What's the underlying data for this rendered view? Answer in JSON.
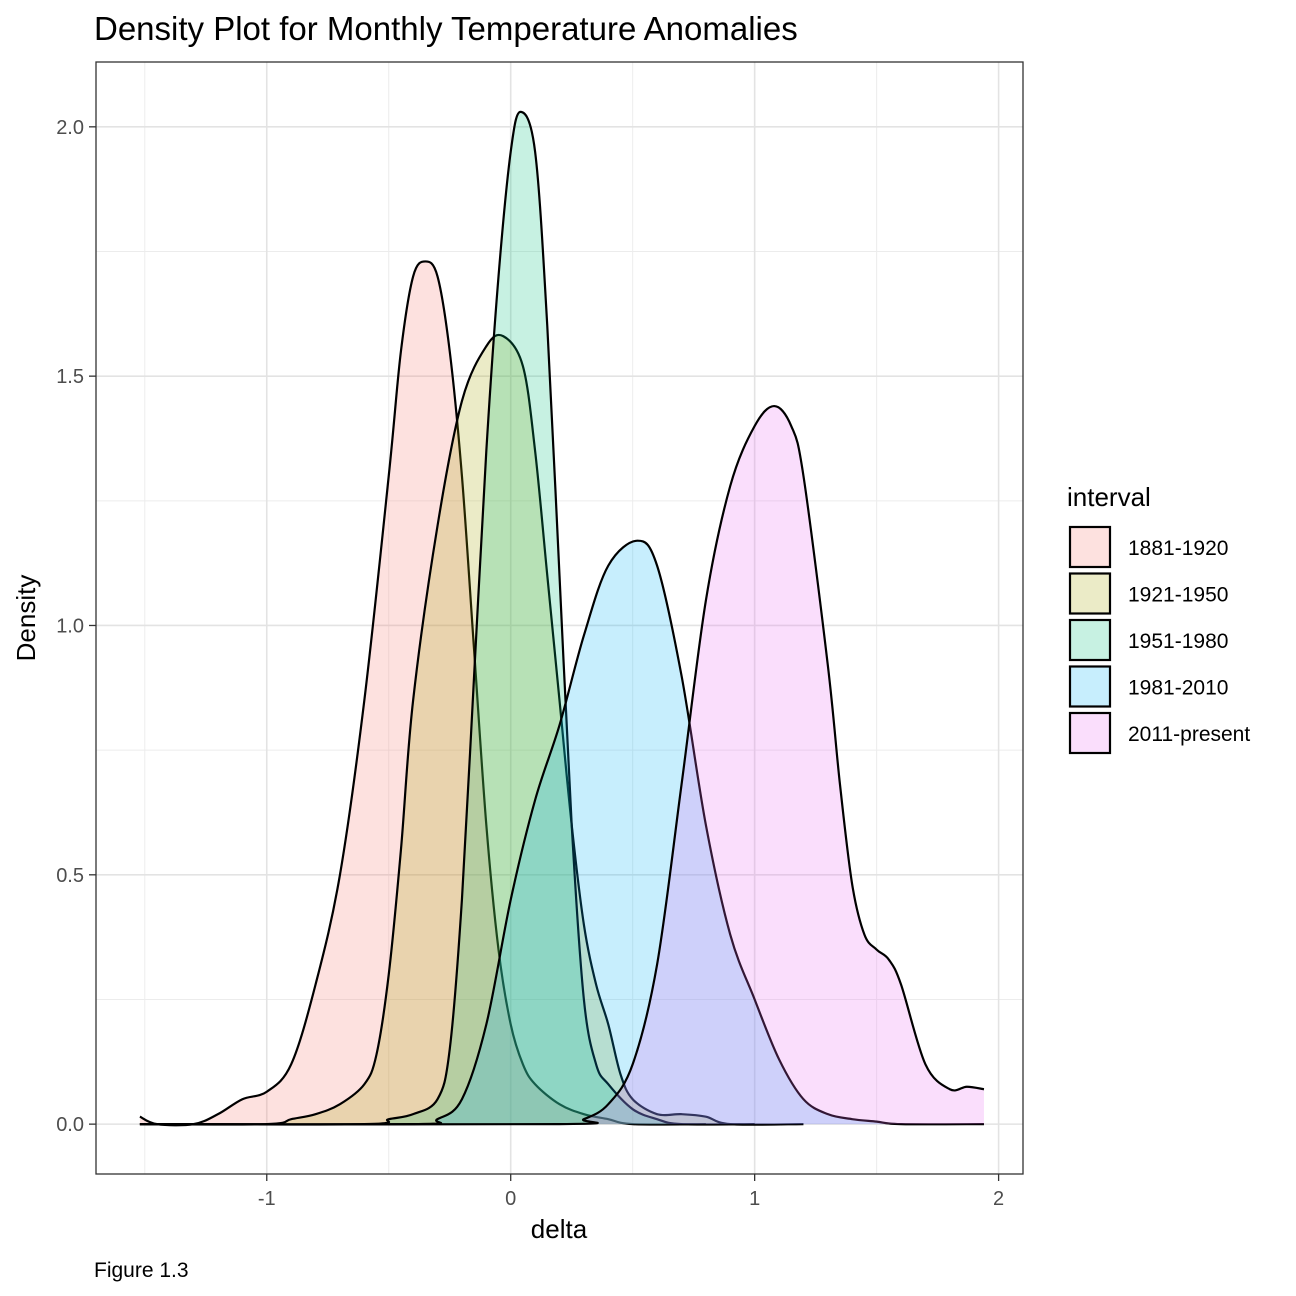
{
  "chart_data": {
    "type": "area",
    "title": "Density Plot for Monthly Temperature Anomalies",
    "xlabel": "delta",
    "ylabel": "Density",
    "caption": "Figure 1.3",
    "xlim": [
      -1.7,
      2.1
    ],
    "ylim": [
      -0.1,
      2.13
    ],
    "x_ticks": [
      -1,
      0,
      1,
      2
    ],
    "x_tick_labels": [
      "-1",
      "0",
      "1",
      "2"
    ],
    "y_ticks": [
      0.0,
      0.5,
      1.0,
      1.5,
      2.0
    ],
    "y_tick_labels": [
      "0.0",
      "0.5",
      "1.0",
      "1.5",
      "2.0"
    ],
    "grid": true,
    "legend": {
      "title": "interval",
      "position": "right"
    },
    "series": [
      {
        "name": "1881-1920",
        "color": "#F8766D",
        "points": [
          [
            -1.52,
            0.015
          ],
          [
            -1.45,
            0.0
          ],
          [
            -1.3,
            0.0
          ],
          [
            -1.2,
            0.02
          ],
          [
            -1.1,
            0.05
          ],
          [
            -1.0,
            0.065
          ],
          [
            -0.9,
            0.12
          ],
          [
            -0.8,
            0.28
          ],
          [
            -0.7,
            0.5
          ],
          [
            -0.6,
            0.85
          ],
          [
            -0.5,
            1.3
          ],
          [
            -0.45,
            1.55
          ],
          [
            -0.4,
            1.7
          ],
          [
            -0.35,
            1.73
          ],
          [
            -0.3,
            1.7
          ],
          [
            -0.25,
            1.55
          ],
          [
            -0.2,
            1.3
          ],
          [
            -0.15,
            0.95
          ],
          [
            -0.1,
            0.6
          ],
          [
            -0.05,
            0.35
          ],
          [
            0.0,
            0.2
          ],
          [
            0.05,
            0.12
          ],
          [
            0.1,
            0.08
          ],
          [
            0.2,
            0.04
          ],
          [
            0.3,
            0.02
          ],
          [
            0.4,
            0.01
          ],
          [
            0.5,
            0.0
          ],
          [
            0.8,
            0.0
          ]
        ]
      },
      {
        "name": "1921-1950",
        "color": "#A3A500",
        "points": [
          [
            -1.52,
            0.0
          ],
          [
            -1.0,
            0.0
          ],
          [
            -0.9,
            0.01
          ],
          [
            -0.8,
            0.02
          ],
          [
            -0.7,
            0.04
          ],
          [
            -0.6,
            0.08
          ],
          [
            -0.55,
            0.14
          ],
          [
            -0.5,
            0.3
          ],
          [
            -0.45,
            0.55
          ],
          [
            -0.4,
            0.85
          ],
          [
            -0.3,
            1.2
          ],
          [
            -0.2,
            1.45
          ],
          [
            -0.1,
            1.56
          ],
          [
            -0.03,
            1.58
          ],
          [
            0.05,
            1.52
          ],
          [
            0.1,
            1.35
          ],
          [
            0.15,
            1.1
          ],
          [
            0.2,
            0.85
          ],
          [
            0.25,
            0.6
          ],
          [
            0.3,
            0.4
          ],
          [
            0.35,
            0.28
          ],
          [
            0.4,
            0.2
          ],
          [
            0.45,
            0.1
          ],
          [
            0.5,
            0.05
          ],
          [
            0.6,
            0.02
          ],
          [
            0.7,
            0.02
          ],
          [
            0.8,
            0.015
          ],
          [
            0.9,
            0.0
          ],
          [
            1.2,
            0.0
          ]
        ]
      },
      {
        "name": "1951-1980",
        "color": "#00BF7D",
        "points": [
          [
            -1.52,
            0.0
          ],
          [
            -0.6,
            0.0
          ],
          [
            -0.5,
            0.01
          ],
          [
            -0.4,
            0.02
          ],
          [
            -0.3,
            0.05
          ],
          [
            -0.25,
            0.15
          ],
          [
            -0.2,
            0.45
          ],
          [
            -0.15,
            0.9
          ],
          [
            -0.1,
            1.35
          ],
          [
            -0.05,
            1.7
          ],
          [
            0.0,
            1.95
          ],
          [
            0.04,
            2.03
          ],
          [
            0.1,
            1.95
          ],
          [
            0.15,
            1.6
          ],
          [
            0.2,
            1.1
          ],
          [
            0.25,
            0.6
          ],
          [
            0.3,
            0.25
          ],
          [
            0.35,
            0.12
          ],
          [
            0.4,
            0.08
          ],
          [
            0.5,
            0.03
          ],
          [
            0.6,
            0.01
          ],
          [
            0.7,
            0.0
          ],
          [
            1.0,
            0.0
          ]
        ]
      },
      {
        "name": "1981-2010",
        "color": "#00B0F6",
        "points": [
          [
            -1.52,
            0.0
          ],
          [
            -0.4,
            0.0
          ],
          [
            -0.3,
            0.01
          ],
          [
            -0.2,
            0.05
          ],
          [
            -0.1,
            0.2
          ],
          [
            0.0,
            0.45
          ],
          [
            0.1,
            0.65
          ],
          [
            0.2,
            0.8
          ],
          [
            0.3,
            0.98
          ],
          [
            0.4,
            1.12
          ],
          [
            0.52,
            1.17
          ],
          [
            0.6,
            1.12
          ],
          [
            0.7,
            0.9
          ],
          [
            0.8,
            0.6
          ],
          [
            0.9,
            0.38
          ],
          [
            1.0,
            0.25
          ],
          [
            1.1,
            0.13
          ],
          [
            1.2,
            0.05
          ],
          [
            1.3,
            0.02
          ],
          [
            1.4,
            0.01
          ],
          [
            1.5,
            0.005
          ],
          [
            1.6,
            0.0
          ],
          [
            1.94,
            0.0
          ]
        ]
      },
      {
        "name": "2011-present",
        "color": "#E76BF3",
        "points": [
          [
            -1.52,
            0.0
          ],
          [
            0.2,
            0.0
          ],
          [
            0.3,
            0.01
          ],
          [
            0.4,
            0.04
          ],
          [
            0.5,
            0.12
          ],
          [
            0.6,
            0.32
          ],
          [
            0.7,
            0.68
          ],
          [
            0.8,
            1.05
          ],
          [
            0.9,
            1.28
          ],
          [
            1.0,
            1.4
          ],
          [
            1.08,
            1.44
          ],
          [
            1.15,
            1.4
          ],
          [
            1.2,
            1.3
          ],
          [
            1.3,
            0.92
          ],
          [
            1.35,
            0.68
          ],
          [
            1.4,
            0.48
          ],
          [
            1.45,
            0.38
          ],
          [
            1.5,
            0.35
          ],
          [
            1.55,
            0.33
          ],
          [
            1.6,
            0.28
          ],
          [
            1.7,
            0.12
          ],
          [
            1.8,
            0.07
          ],
          [
            1.87,
            0.075
          ],
          [
            1.94,
            0.07
          ]
        ]
      }
    ]
  }
}
